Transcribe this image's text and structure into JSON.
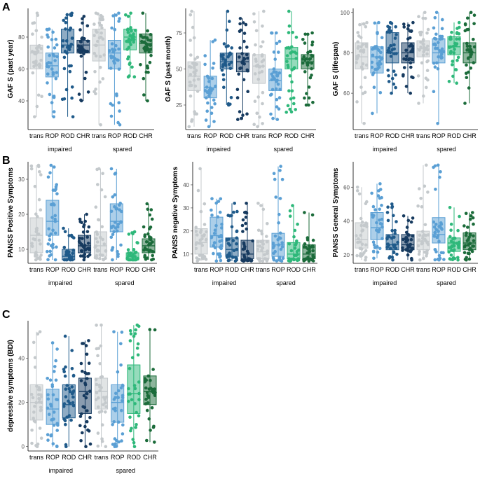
{
  "panel_letters": [
    "A",
    "B",
    "C"
  ],
  "colors": {
    "trans": "#c4c9cc",
    "ROP": "#5a9fd4",
    "ROD_impaired": "#1f5a8a",
    "CHR_impaired": "#163a5f",
    "ROD_spared": "#2eb87a",
    "CHR_spared": "#1b6b3a"
  },
  "chart_data": [
    {
      "id": "gaf-past-year",
      "type": "box",
      "panel": "A",
      "ylabel": "GAF S (past year)",
      "ylim": [
        22,
        98
      ],
      "yticks": [
        40,
        60,
        80
      ],
      "groups": [
        "impaired",
        "spared"
      ],
      "categories": [
        "trans",
        "ROP",
        "ROD",
        "CHR"
      ],
      "boxes": [
        {
          "group": "impaired",
          "category": "trans",
          "q1": 60,
          "median": 70,
          "q3": 75,
          "min": 30,
          "max": 95
        },
        {
          "group": "impaired",
          "category": "ROP",
          "q1": 55,
          "median": 62,
          "q3": 70,
          "min": 30,
          "max": 85
        },
        {
          "group": "impaired",
          "category": "ROD",
          "q1": 70,
          "median": 75,
          "q3": 85,
          "min": 30,
          "max": 95
        },
        {
          "group": "impaired",
          "category": "CHR",
          "q1": 70,
          "median": 75,
          "q3": 78,
          "min": 40,
          "max": 93
        },
        {
          "group": "spared",
          "category": "trans",
          "q1": 65,
          "median": 75,
          "q3": 85,
          "min": 25,
          "max": 95
        },
        {
          "group": "spared",
          "category": "ROP",
          "q1": 60,
          "median": 70,
          "q3": 78,
          "min": 25,
          "max": 95
        },
        {
          "group": "spared",
          "category": "ROD",
          "q1": 72,
          "median": 80,
          "q3": 85,
          "min": 55,
          "max": 95
        },
        {
          "group": "spared",
          "category": "CHR",
          "q1": 70,
          "median": 76,
          "q3": 82,
          "min": 40,
          "max": 95
        }
      ]
    },
    {
      "id": "gaf-past-month",
      "type": "box",
      "panel": "A",
      "ylabel": "GAF S (past month)",
      "ylim": [
        8,
        92
      ],
      "yticks": [
        25,
        50,
        75
      ],
      "groups": [
        "impaired",
        "spared"
      ],
      "categories": [
        "trans",
        "ROP",
        "ROD",
        "CHR"
      ],
      "boxes": [
        {
          "group": "impaired",
          "category": "trans",
          "q1": 35,
          "median": 45,
          "q3": 55,
          "min": 10,
          "max": 90
        },
        {
          "group": "impaired",
          "category": "ROP",
          "q1": 30,
          "median": 37,
          "q3": 45,
          "min": 10,
          "max": 70
        },
        {
          "group": "impaired",
          "category": "ROD",
          "q1": 50,
          "median": 55,
          "q3": 61,
          "min": 25,
          "max": 90
        },
        {
          "group": "impaired",
          "category": "CHR",
          "q1": 48,
          "median": 55,
          "q3": 61,
          "min": 15,
          "max": 85
        },
        {
          "group": "spared",
          "category": "trans",
          "q1": 40,
          "median": 52,
          "q3": 60,
          "min": 10,
          "max": 90
        },
        {
          "group": "spared",
          "category": "ROP",
          "q1": 35,
          "median": 42,
          "q3": 50,
          "min": 15,
          "max": 75
        },
        {
          "group": "spared",
          "category": "ROD",
          "q1": 50,
          "median": 57,
          "q3": 65,
          "min": 20,
          "max": 90
        },
        {
          "group": "spared",
          "category": "CHR",
          "q1": 50,
          "median": 55,
          "q3": 60,
          "min": 25,
          "max": 75
        }
      ]
    },
    {
      "id": "gaf-lifespan",
      "type": "box",
      "panel": "A",
      "ylabel": "GAF S (lifespan)",
      "ylim": [
        42,
        102
      ],
      "yticks": [
        60,
        80,
        100
      ],
      "groups": [
        "impaired",
        "spared"
      ],
      "categories": [
        "trans",
        "ROP",
        "ROD",
        "CHR"
      ],
      "boxes": [
        {
          "group": "impaired",
          "category": "trans",
          "q1": 72,
          "median": 78,
          "q3": 85,
          "min": 45,
          "max": 95
        },
        {
          "group": "impaired",
          "category": "ROP",
          "q1": 70,
          "median": 78,
          "q3": 83,
          "min": 50,
          "max": 95
        },
        {
          "group": "impaired",
          "category": "ROD",
          "q1": 75,
          "median": 80,
          "q3": 90,
          "min": 60,
          "max": 95
        },
        {
          "group": "impaired",
          "category": "CHR",
          "q1": 75,
          "median": 80,
          "q3": 85,
          "min": 60,
          "max": 95
        },
        {
          "group": "spared",
          "category": "trans",
          "q1": 78,
          "median": 82,
          "q3": 86,
          "min": 55,
          "max": 100
        },
        {
          "group": "spared",
          "category": "ROP",
          "q1": 75,
          "median": 80,
          "q3": 87,
          "min": 45,
          "max": 100
        },
        {
          "group": "spared",
          "category": "ROD",
          "q1": 79,
          "median": 83,
          "q3": 88,
          "min": 65,
          "max": 95
        },
        {
          "group": "spared",
          "category": "CHR",
          "q1": 75,
          "median": 80,
          "q3": 85,
          "min": 55,
          "max": 100
        }
      ]
    },
    {
      "id": "panss-positive",
      "type": "box",
      "panel": "B",
      "ylabel": "PANSS Positive Symptoms",
      "ylim": [
        6,
        35
      ],
      "yticks": [
        10,
        20,
        30
      ],
      "groups": [
        "impaired",
        "spared"
      ],
      "categories": [
        "trans",
        "ROP",
        "ROD",
        "CHR"
      ],
      "boxes": [
        {
          "group": "impaired",
          "category": "trans",
          "q1": 9,
          "median": 14,
          "q3": 19,
          "min": 7,
          "max": 34
        },
        {
          "group": "impaired",
          "category": "ROP",
          "q1": 14,
          "median": 18,
          "q3": 24,
          "min": 7,
          "max": 34
        },
        {
          "group": "impaired",
          "category": "ROD",
          "q1": 7,
          "median": 8,
          "q3": 10,
          "min": 7,
          "max": 16
        },
        {
          "group": "impaired",
          "category": "CHR",
          "q1": 9,
          "median": 11,
          "q3": 14,
          "min": 7,
          "max": 20
        },
        {
          "group": "spared",
          "category": "trans",
          "q1": 8,
          "median": 11,
          "q3": 15,
          "min": 7,
          "max": 33
        },
        {
          "group": "spared",
          "category": "ROP",
          "q1": 15,
          "median": 18,
          "q3": 23,
          "min": 7,
          "max": 33
        },
        {
          "group": "spared",
          "category": "ROD",
          "q1": 7,
          "median": 7,
          "q3": 9,
          "min": 7,
          "max": 15
        },
        {
          "group": "spared",
          "category": "CHR",
          "q1": 9,
          "median": 11,
          "q3": 13,
          "min": 7,
          "max": 23
        }
      ]
    },
    {
      "id": "panss-negative",
      "type": "box",
      "panel": "B",
      "ylabel": "PANSS negative Symptoms",
      "ylim": [
        6,
        50
      ],
      "yticks": [
        10,
        20,
        30,
        40
      ],
      "groups": [
        "impaired",
        "spared"
      ],
      "categories": [
        "trans",
        "ROP",
        "ROD",
        "CHR"
      ],
      "boxes": [
        {
          "group": "impaired",
          "category": "trans",
          "q1": 10,
          "median": 15,
          "q3": 21,
          "min": 7,
          "max": 47
        },
        {
          "group": "impaired",
          "category": "ROP",
          "q1": 13,
          "median": 18,
          "q3": 26,
          "min": 7,
          "max": 34
        },
        {
          "group": "impaired",
          "category": "ROD",
          "q1": 9,
          "median": 12,
          "q3": 17,
          "min": 7,
          "max": 32
        },
        {
          "group": "impaired",
          "category": "CHR",
          "q1": 8,
          "median": 10,
          "q3": 16,
          "min": 7,
          "max": 32
        },
        {
          "group": "spared",
          "category": "trans",
          "q1": 8,
          "median": 11,
          "q3": 16,
          "min": 7,
          "max": 32
        },
        {
          "group": "spared",
          "category": "ROP",
          "q1": 9,
          "median": 14,
          "q3": 19,
          "min": 7,
          "max": 48
        },
        {
          "group": "spared",
          "category": "ROD",
          "q1": 8,
          "median": 10,
          "q3": 15,
          "min": 7,
          "max": 31
        },
        {
          "group": "spared",
          "category": "CHR",
          "q1": 8,
          "median": 10,
          "q3": 14,
          "min": 7,
          "max": 28
        }
      ]
    },
    {
      "id": "panss-general",
      "type": "box",
      "panel": "B",
      "ylabel": "PANSS General Symptoms",
      "ylim": [
        15,
        75
      ],
      "yticks": [
        20,
        40,
        60
      ],
      "groups": [
        "impaired",
        "spared"
      ],
      "categories": [
        "trans",
        "ROP",
        "ROD",
        "CHR"
      ],
      "boxes": [
        {
          "group": "impaired",
          "category": "trans",
          "q1": 24,
          "median": 29,
          "q3": 39,
          "min": 17,
          "max": 60
        },
        {
          "group": "impaired",
          "category": "ROP",
          "q1": 29,
          "median": 36,
          "q3": 45,
          "min": 18,
          "max": 62
        },
        {
          "group": "impaired",
          "category": "ROD",
          "q1": 23,
          "median": 26,
          "q3": 32,
          "min": 17,
          "max": 50
        },
        {
          "group": "impaired",
          "category": "CHR",
          "q1": 23,
          "median": 26,
          "q3": 32,
          "min": 17,
          "max": 43
        },
        {
          "group": "spared",
          "category": "trans",
          "q1": 23,
          "median": 28,
          "q3": 34,
          "min": 17,
          "max": 73
        },
        {
          "group": "spared",
          "category": "ROP",
          "q1": 27,
          "median": 32,
          "q3": 42,
          "min": 17,
          "max": 73
        },
        {
          "group": "spared",
          "category": "ROD",
          "q1": 22,
          "median": 27,
          "q3": 30,
          "min": 17,
          "max": 48
        },
        {
          "group": "spared",
          "category": "CHR",
          "q1": 23,
          "median": 27,
          "q3": 33,
          "min": 17,
          "max": 45
        }
      ]
    },
    {
      "id": "bdi",
      "type": "box",
      "panel": "C",
      "ylabel": "depressive symptoms (BDI)",
      "ylim": [
        -2,
        57
      ],
      "yticks": [
        0,
        20,
        40
      ],
      "groups": [
        "impaired",
        "spared"
      ],
      "categories": [
        "trans",
        "ROP",
        "ROD",
        "CHR"
      ],
      "boxes": [
        {
          "group": "impaired",
          "category": "trans",
          "q1": 12,
          "median": 20,
          "q3": 28,
          "min": 0,
          "max": 52
        },
        {
          "group": "impaired",
          "category": "ROP",
          "q1": 10,
          "median": 17,
          "q3": 26,
          "min": 0,
          "max": 47
        },
        {
          "group": "impaired",
          "category": "ROD",
          "q1": 13,
          "median": 19,
          "q3": 28,
          "min": 0,
          "max": 50
        },
        {
          "group": "impaired",
          "category": "CHR",
          "q1": 15,
          "median": 25,
          "q3": 31,
          "min": 0,
          "max": 48
        },
        {
          "group": "spared",
          "category": "trans",
          "q1": 17,
          "median": 25,
          "q3": 31,
          "min": 0,
          "max": 55
        },
        {
          "group": "spared",
          "category": "ROP",
          "q1": 11,
          "median": 20,
          "q3": 28,
          "min": 0,
          "max": 52
        },
        {
          "group": "spared",
          "category": "ROD",
          "q1": 15,
          "median": 24,
          "q3": 37,
          "min": 0,
          "max": 55
        },
        {
          "group": "spared",
          "category": "CHR",
          "q1": 19,
          "median": 25,
          "q3": 32,
          "min": 2,
          "max": 53
        }
      ]
    }
  ]
}
